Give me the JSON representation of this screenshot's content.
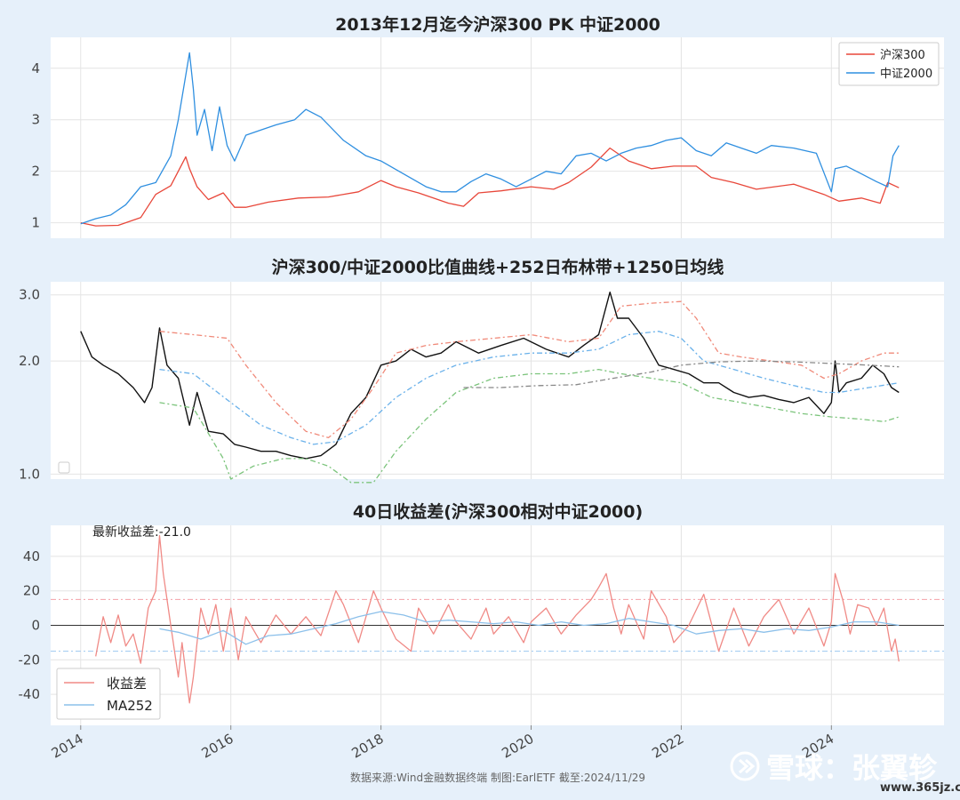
{
  "colors": {
    "hs300": "#e8473a",
    "zz2000": "#2f8fe0",
    "ratio": "#111111",
    "upper_band": "#f08a7a",
    "mid_band": "#6ab1ea",
    "lower_band": "#7cc47c",
    "ma1250": "#888888",
    "spread": "#f08a86",
    "spread_ma": "#8cc0ea",
    "ref_pos": "#f4a0a8",
    "ref_neg": "#9cc8f0"
  },
  "footer": "数据来源:Wind金融数据终端  制图:EarlETF 截至:2024/11/29",
  "watermark": {
    "icon": "xueqiu-logo-icon",
    "text": "雪球：张翼轸",
    "url": "www.365jz.com"
  },
  "chart_data": [
    {
      "type": "line",
      "title": "2013年12月迄今沪深300 PK 中证2000",
      "xlabel": "",
      "ylabel": "",
      "xlim": [
        2013.6,
        2025.5
      ],
      "ylim": [
        0.7,
        4.6
      ],
      "yticks": [
        1,
        2,
        3,
        4
      ],
      "ytick_labels": [
        "1",
        "2",
        "3",
        "4"
      ],
      "grid": true,
      "legend_position": "top-right",
      "series": [
        {
          "name": "沪深300",
          "color_key": "hs300",
          "x": [
            2014.0,
            2014.2,
            2014.5,
            2014.8,
            2015.0,
            2015.2,
            2015.4,
            2015.45,
            2015.55,
            2015.7,
            2015.9,
            2016.05,
            2016.2,
            2016.5,
            2016.9,
            2017.3,
            2017.7,
            2018.0,
            2018.2,
            2018.5,
            2018.9,
            2019.1,
            2019.3,
            2019.6,
            2020.0,
            2020.3,
            2020.5,
            2020.8,
            2021.05,
            2021.3,
            2021.6,
            2021.9,
            2022.2,
            2022.4,
            2022.7,
            2023.0,
            2023.5,
            2023.9,
            2024.1,
            2024.4,
            2024.65,
            2024.75,
            2024.9
          ],
          "y": [
            1.0,
            0.94,
            0.95,
            1.1,
            1.55,
            1.72,
            2.28,
            2.05,
            1.7,
            1.45,
            1.58,
            1.3,
            1.3,
            1.4,
            1.48,
            1.5,
            1.6,
            1.82,
            1.7,
            1.58,
            1.38,
            1.32,
            1.58,
            1.62,
            1.7,
            1.65,
            1.78,
            2.08,
            2.45,
            2.2,
            2.05,
            2.1,
            2.1,
            1.88,
            1.78,
            1.65,
            1.75,
            1.55,
            1.42,
            1.48,
            1.38,
            1.78,
            1.68
          ]
        },
        {
          "name": "中证2000",
          "color_key": "zz2000",
          "x": [
            2014.0,
            2014.2,
            2014.4,
            2014.6,
            2014.8,
            2015.0,
            2015.2,
            2015.3,
            2015.45,
            2015.5,
            2015.55,
            2015.65,
            2015.75,
            2015.85,
            2015.95,
            2016.05,
            2016.2,
            2016.4,
            2016.6,
            2016.85,
            2017.0,
            2017.2,
            2017.5,
            2017.8,
            2018.0,
            2018.3,
            2018.6,
            2018.8,
            2019.0,
            2019.2,
            2019.4,
            2019.6,
            2019.8,
            2020.0,
            2020.2,
            2020.4,
            2020.6,
            2020.8,
            2021.0,
            2021.2,
            2021.4,
            2021.6,
            2021.8,
            2022.0,
            2022.2,
            2022.4,
            2022.6,
            2022.8,
            2023.0,
            2023.2,
            2023.5,
            2023.8,
            2024.0,
            2024.05,
            2024.2,
            2024.4,
            2024.6,
            2024.75,
            2024.82,
            2024.9
          ],
          "y": [
            0.98,
            1.08,
            1.15,
            1.35,
            1.7,
            1.78,
            2.3,
            3.0,
            4.3,
            3.6,
            2.7,
            3.2,
            2.4,
            3.25,
            2.5,
            2.2,
            2.7,
            2.8,
            2.9,
            3.0,
            3.2,
            3.05,
            2.6,
            2.3,
            2.2,
            1.95,
            1.7,
            1.6,
            1.6,
            1.8,
            1.95,
            1.85,
            1.7,
            1.85,
            2.0,
            1.95,
            2.3,
            2.35,
            2.2,
            2.35,
            2.45,
            2.5,
            2.6,
            2.65,
            2.4,
            2.3,
            2.55,
            2.45,
            2.35,
            2.5,
            2.45,
            2.35,
            1.6,
            2.05,
            2.1,
            1.95,
            1.8,
            1.7,
            2.3,
            2.5
          ]
        }
      ]
    },
    {
      "type": "line",
      "title": "沪深300/中证2000比值曲线+252日布林带+1250日均线",
      "xlabel": "",
      "ylabel": "",
      "xlim": [
        2013.6,
        2025.5
      ],
      "ylim": [
        0.97,
        3.25
      ],
      "y_scale": "log",
      "yticks": [
        1.0,
        2.0,
        3.0
      ],
      "ytick_labels": [
        "1.0",
        "2.0",
        "3.0"
      ],
      "grid": true,
      "legend_position": "bottom-left",
      "series": [
        {
          "color_key": "ratio",
          "x": [
            2014.0,
            2014.15,
            2014.3,
            2014.5,
            2014.7,
            2014.85,
            2014.95,
            2015.05,
            2015.15,
            2015.3,
            2015.45,
            2015.55,
            2015.7,
            2015.9,
            2016.05,
            2016.2,
            2016.4,
            2016.6,
            2016.8,
            2017.0,
            2017.2,
            2017.4,
            2017.6,
            2017.8,
            2018.0,
            2018.2,
            2018.4,
            2018.6,
            2018.8,
            2019.0,
            2019.3,
            2019.6,
            2019.9,
            2020.2,
            2020.5,
            2020.7,
            2020.9,
            2021.05,
            2021.15,
            2021.3,
            2021.5,
            2021.7,
            2021.9,
            2022.1,
            2022.3,
            2022.5,
            2022.7,
            2022.9,
            2023.1,
            2023.3,
            2023.5,
            2023.7,
            2023.9,
            2024.0,
            2024.05,
            2024.1,
            2024.2,
            2024.4,
            2024.55,
            2024.7,
            2024.8,
            2024.9
          ],
          "y": [
            2.4,
            2.05,
            1.95,
            1.85,
            1.7,
            1.55,
            1.7,
            2.45,
            1.95,
            1.8,
            1.35,
            1.65,
            1.3,
            1.28,
            1.2,
            1.18,
            1.15,
            1.15,
            1.12,
            1.1,
            1.12,
            1.2,
            1.45,
            1.6,
            1.95,
            2.0,
            2.15,
            2.05,
            2.1,
            2.25,
            2.1,
            2.2,
            2.3,
            2.15,
            2.05,
            2.2,
            2.35,
            3.05,
            2.6,
            2.6,
            2.3,
            1.95,
            1.9,
            1.85,
            1.75,
            1.75,
            1.65,
            1.6,
            1.62,
            1.58,
            1.55,
            1.6,
            1.45,
            1.55,
            2.0,
            1.65,
            1.75,
            1.8,
            1.95,
            1.85,
            1.7,
            1.65
          ]
        },
        {
          "color_key": "upper_band",
          "x": [
            2015.05,
            2015.5,
            2015.95,
            2016.2,
            2016.6,
            2017.0,
            2017.3,
            2017.6,
            2017.9,
            2018.2,
            2018.6,
            2019.0,
            2019.5,
            2020.0,
            2020.5,
            2020.9,
            2021.2,
            2021.6,
            2022.0,
            2022.2,
            2022.5,
            2022.8,
            2023.2,
            2023.6,
            2023.9,
            2024.1,
            2024.4,
            2024.7,
            2024.9
          ],
          "y": [
            2.4,
            2.35,
            2.3,
            1.95,
            1.55,
            1.3,
            1.25,
            1.4,
            1.7,
            2.1,
            2.2,
            2.25,
            2.3,
            2.35,
            2.25,
            2.3,
            2.8,
            2.85,
            2.88,
            2.6,
            2.1,
            2.05,
            2.0,
            1.95,
            1.8,
            1.85,
            2.0,
            2.1,
            2.1
          ]
        },
        {
          "color_key": "mid_band",
          "x": [
            2015.05,
            2015.5,
            2016.0,
            2016.4,
            2016.8,
            2017.1,
            2017.4,
            2017.8,
            2018.2,
            2018.6,
            2019.0,
            2019.5,
            2020.0,
            2020.5,
            2020.9,
            2021.3,
            2021.7,
            2022.0,
            2022.3,
            2022.7,
            2023.1,
            2023.5,
            2023.9,
            2024.1,
            2024.5,
            2024.9
          ],
          "y": [
            1.9,
            1.85,
            1.55,
            1.35,
            1.25,
            1.2,
            1.22,
            1.35,
            1.6,
            1.8,
            1.95,
            2.05,
            2.1,
            2.1,
            2.15,
            2.35,
            2.4,
            2.3,
            2.0,
            1.9,
            1.8,
            1.72,
            1.65,
            1.65,
            1.7,
            1.75
          ]
        },
        {
          "color_key": "lower_band",
          "x": [
            2015.05,
            2015.5,
            2015.9,
            2016.0,
            2016.3,
            2016.7,
            2017.0,
            2017.3,
            2017.6,
            2017.9,
            2018.2,
            2018.6,
            2019.0,
            2019.5,
            2020.0,
            2020.5,
            2020.9,
            2021.2,
            2021.6,
            2022.0,
            2022.4,
            2022.8,
            2023.2,
            2023.6,
            2024.0,
            2024.4,
            2024.7,
            2024.9
          ],
          "y": [
            1.55,
            1.5,
            1.1,
            0.97,
            1.05,
            1.1,
            1.1,
            1.05,
            0.95,
            0.95,
            1.15,
            1.4,
            1.65,
            1.8,
            1.85,
            1.85,
            1.9,
            1.85,
            1.8,
            1.75,
            1.6,
            1.55,
            1.5,
            1.45,
            1.42,
            1.4,
            1.38,
            1.42
          ]
        },
        {
          "color_key": "ma1250",
          "x": [
            2019.1,
            2019.6,
            2020.1,
            2020.6,
            2021.1,
            2021.6,
            2022.0,
            2022.5,
            2023.0,
            2023.5,
            2024.0,
            2024.5,
            2024.9
          ],
          "y": [
            1.7,
            1.7,
            1.72,
            1.73,
            1.8,
            1.87,
            1.95,
            1.99,
            2.0,
            1.99,
            1.97,
            1.95,
            1.93
          ]
        }
      ]
    },
    {
      "type": "line",
      "title": "40日收益差(沪深300相对中证2000)",
      "xlabel": "",
      "ylabel": "",
      "xlim": [
        2013.6,
        2025.5
      ],
      "ylim": [
        -58,
        58
      ],
      "yticks": [
        -40,
        -20,
        0,
        20,
        40
      ],
      "ytick_labels": [
        "-40",
        "-20",
        "0",
        "20",
        "40"
      ],
      "x_ticks": [
        2014,
        2016,
        2018,
        2020,
        2022,
        2024
      ],
      "x_tick_labels": [
        "2014",
        "2016",
        "2018",
        "2020",
        "2022",
        "2024"
      ],
      "grid": true,
      "legend_position": "bottom-left",
      "annotation": "最新收益差:-21.0",
      "reference_lines": [
        15,
        0,
        -15
      ],
      "series": [
        {
          "name": "收益差",
          "color_key": "spread",
          "x": [
            2014.2,
            2014.3,
            2014.4,
            2014.5,
            2014.6,
            2014.7,
            2014.8,
            2014.9,
            2015.0,
            2015.05,
            2015.1,
            2015.2,
            2015.3,
            2015.35,
            2015.45,
            2015.5,
            2015.6,
            2015.7,
            2015.8,
            2015.9,
            2016.0,
            2016.1,
            2016.2,
            2016.4,
            2016.6,
            2016.8,
            2017.0,
            2017.2,
            2017.4,
            2017.5,
            2017.7,
            2017.9,
            2018.0,
            2018.2,
            2018.4,
            2018.5,
            2018.7,
            2018.9,
            2019.0,
            2019.2,
            2019.4,
            2019.5,
            2019.7,
            2019.9,
            2020.0,
            2020.2,
            2020.4,
            2020.6,
            2020.8,
            2020.9,
            2021.0,
            2021.1,
            2021.2,
            2021.3,
            2021.5,
            2021.6,
            2021.8,
            2021.9,
            2022.1,
            2022.3,
            2022.5,
            2022.7,
            2022.9,
            2023.1,
            2023.3,
            2023.5,
            2023.7,
            2023.9,
            2024.0,
            2024.05,
            2024.15,
            2024.25,
            2024.35,
            2024.5,
            2024.6,
            2024.7,
            2024.8,
            2024.85,
            2024.9
          ],
          "y": [
            -18,
            5,
            -10,
            6,
            -12,
            -5,
            -22,
            10,
            20,
            52,
            30,
            0,
            -30,
            -10,
            -45,
            -30,
            10,
            -5,
            12,
            -15,
            10,
            -20,
            5,
            -10,
            6,
            -5,
            5,
            -6,
            20,
            12,
            -10,
            20,
            10,
            -8,
            -15,
            10,
            -5,
            12,
            2,
            -8,
            10,
            -5,
            5,
            -10,
            2,
            10,
            -5,
            6,
            15,
            22,
            30,
            10,
            -5,
            12,
            -8,
            20,
            5,
            -10,
            0,
            18,
            -15,
            10,
            -12,
            5,
            15,
            -5,
            10,
            -12,
            2,
            30,
            15,
            -5,
            12,
            10,
            0,
            10,
            -15,
            -8,
            -21
          ]
        },
        {
          "name": "MA252",
          "color_key": "spread_ma",
          "x": [
            2015.05,
            2015.3,
            2015.6,
            2015.9,
            2016.2,
            2016.5,
            2016.8,
            2017.1,
            2017.4,
            2017.7,
            2018.0,
            2018.3,
            2018.6,
            2018.9,
            2019.2,
            2019.5,
            2019.8,
            2020.1,
            2020.4,
            2020.7,
            2021.0,
            2021.3,
            2021.6,
            2021.9,
            2022.2,
            2022.5,
            2022.8,
            2023.1,
            2023.4,
            2023.7,
            2024.0,
            2024.3,
            2024.6,
            2024.9
          ],
          "y": [
            -2,
            -4,
            -8,
            -3,
            -11,
            -6,
            -5,
            -2,
            1,
            5,
            8,
            6,
            2,
            3,
            2,
            1,
            2,
            0,
            2,
            0,
            1,
            4,
            2,
            0,
            -5,
            -3,
            -2,
            -4,
            -2,
            -3,
            -1,
            2,
            2,
            0
          ]
        }
      ]
    }
  ]
}
